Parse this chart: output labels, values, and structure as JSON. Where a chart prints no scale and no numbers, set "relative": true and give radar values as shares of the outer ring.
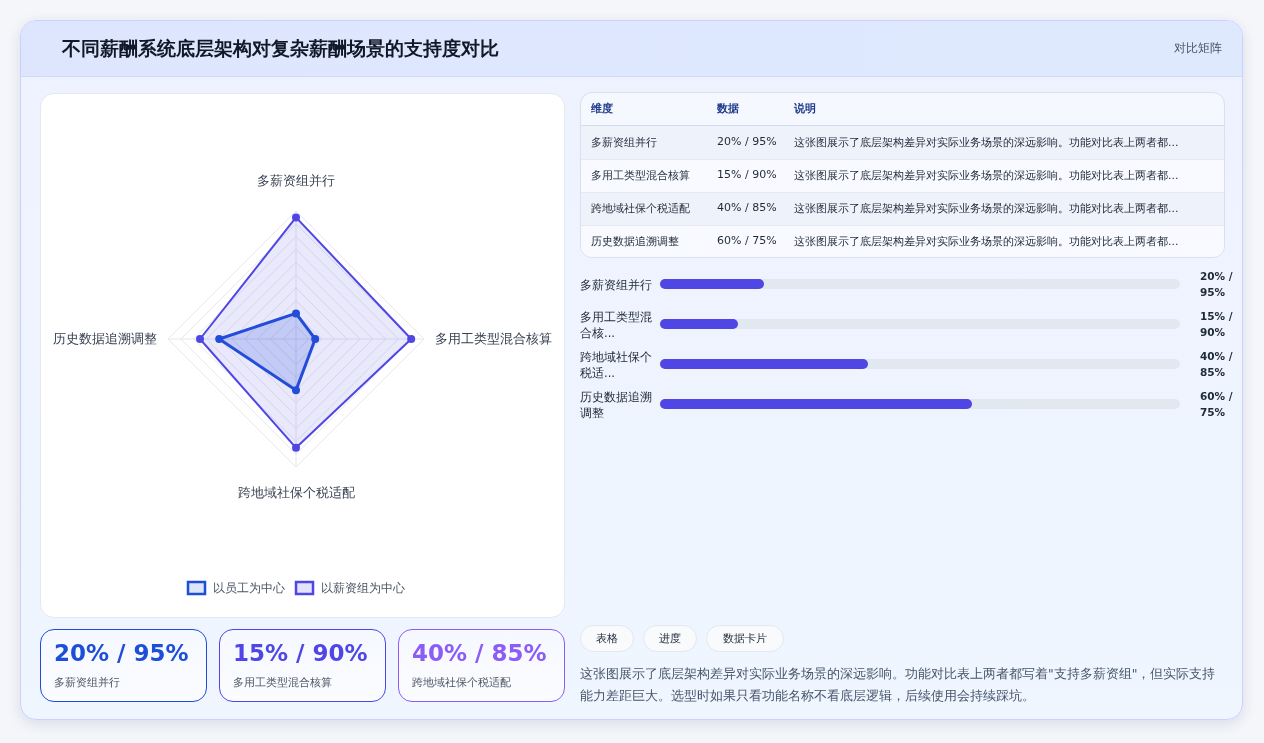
{
  "chart_data": [
    {
      "type": "radar",
      "title": "不同薪酬系统底层架构对复杂薪酬场景的支持度对比",
      "categories": [
        "多薪资组并行",
        "多用工类型混合核算",
        "跨地域社保个税适配",
        "历史数据追溯调整"
      ],
      "relative": true,
      "legend": "bottom",
      "marker": "circle",
      "series": [
        {
          "name": "以员工为中心",
          "color": "#1d4ed8",
          "values": [
            0.2,
            0.15,
            0.4,
            0.6
          ]
        },
        {
          "name": "以薪资组为中心",
          "color": "#4f46e5",
          "values": [
            0.95,
            0.9,
            0.85,
            0.75
          ]
        }
      ]
    },
    {
      "type": "other",
      "subtitle": "对比矩阵",
      "categories": [
        "维度",
        "数据",
        "说明"
      ],
      "y_categories": [
        "多薪资组并行",
        "多用工类型混合核算",
        "跨地域社保个税适配",
        "历史数据追溯调整"
      ],
      "cell_labels": [
        [
          "20% / 95%",
          "这张图展示了底层架构差异对实际业务场景的深远影响。功能对比表上两者都..."
        ],
        [
          "15% / 90%",
          "这张图展示了底层架构差异对实际业务场景的深远影响。功能对比表上两者都..."
        ],
        [
          "40% / 85%",
          "这张图展示了底层架构差异对实际业务场景的深远影响。功能对比表上两者都..."
        ],
        [
          "60% / 75%",
          "这张图展示了底层架构差异对实际业务场景的深远影响。功能对比表上两者都..."
        ]
      ]
    },
    {
      "type": "bar",
      "orientation": "horizontal",
      "categories": [
        "多薪资组并行",
        "多用工类型混合核...",
        "跨地域社保个税适...",
        "历史数据追溯调整"
      ],
      "values": [
        20,
        15,
        40,
        60
      ],
      "color": "#4f46e5",
      "xlim": [
        0,
        100
      ],
      "value_labels": [
        "20% / 95%",
        "15% / 90%",
        "40% / 85%",
        "60% / 75%"
      ]
    },
    {
      "type": "other",
      "categories": [
        "多薪资组并行",
        "多用工类型混合核算",
        "跨地域社保个税适配"
      ],
      "value_labels": [
        "20% / 95%",
        "15% / 90%",
        "40% / 85%"
      ],
      "colors": [
        "#1d4ed8",
        "#4f46e5",
        "#8b5cf6"
      ]
    },
    {
      "type": "other",
      "annotations": [
        "表格",
        "进度",
        "数据卡片",
        "这张图展示了底层架构差异对实际业务场景的深远影响。功能对比表上两者都写着\"支持多薪资组\"，但实际支持能力差距巨大。选型时如果只看功能名称不看底层逻辑，后续使用会持续踩坑。"
      ]
    }
  ]
}
